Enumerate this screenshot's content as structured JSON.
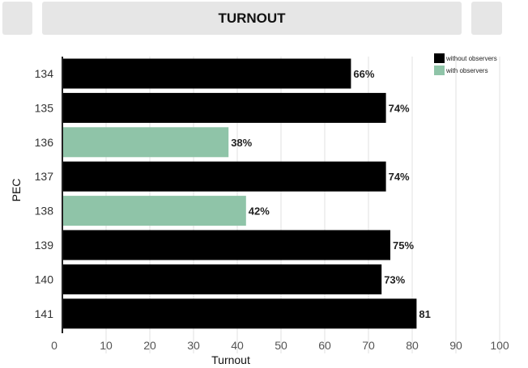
{
  "colors": {
    "without": "#000000",
    "with": "#8fc4a8"
  },
  "header": {
    "title": "TURNOUT",
    "left_icon": "menu-icon",
    "right_icon": "settings-icon"
  },
  "chart_data": {
    "type": "bar",
    "orientation": "horizontal",
    "title": "TURNOUT",
    "xlabel": "Turnout",
    "ylabel": "PEC",
    "xlim": [
      0,
      100
    ],
    "xticks": [
      "0",
      "10",
      "20",
      "30",
      "40",
      "50",
      "60",
      "70",
      "80",
      "90",
      "100"
    ],
    "grid": "vertical",
    "legend": {
      "position": "top-right",
      "items": [
        {
          "label": "without observers",
          "color": "#000000"
        },
        {
          "label": "with observers",
          "color": "#8fc4a8"
        }
      ]
    },
    "categories": [
      "134",
      "135",
      "136",
      "137",
      "138",
      "139",
      "140",
      "141"
    ],
    "values": [
      66,
      74,
      38,
      74,
      42,
      75,
      73,
      81
    ],
    "groups": [
      "without",
      "without",
      "with",
      "without",
      "with",
      "without",
      "without",
      "without"
    ],
    "labels": [
      "66%",
      "74%",
      "38%",
      "74%",
      "42%",
      "75%",
      "73%",
      "81"
    ]
  }
}
